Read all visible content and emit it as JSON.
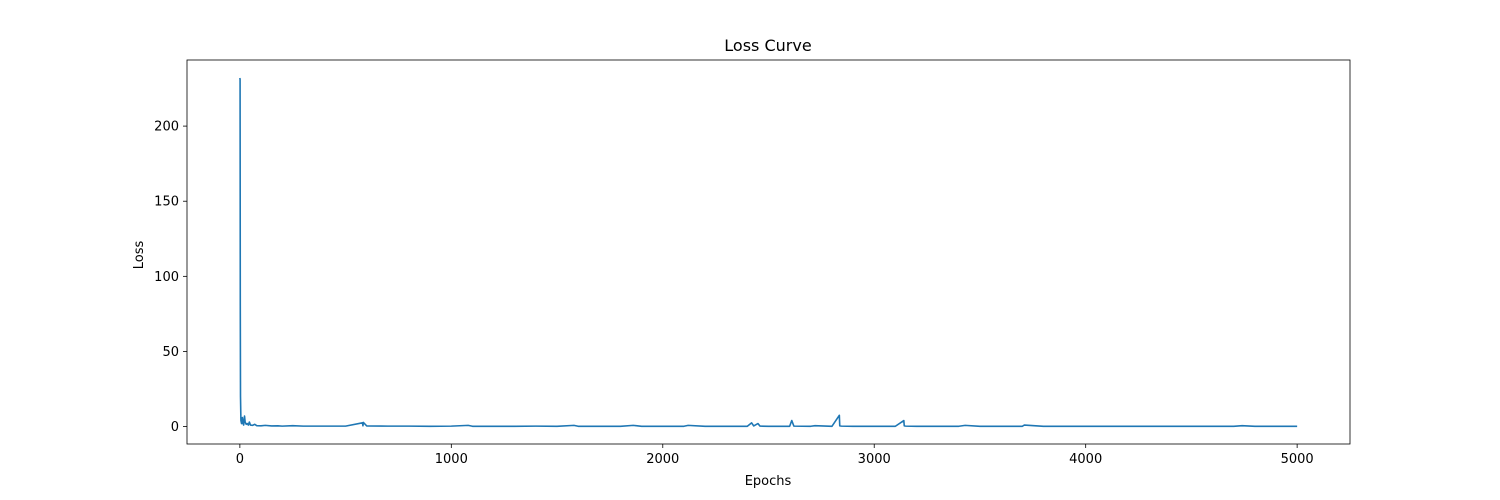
{
  "chart_data": {
    "type": "line",
    "title": "Loss Curve",
    "xlabel": "Epochs",
    "ylabel": "Loss",
    "xlim": [
      -250,
      5250
    ],
    "ylim": [
      -11.6,
      244
    ],
    "x_ticks": [
      0,
      1000,
      2000,
      3000,
      4000,
      5000
    ],
    "y_ticks": [
      0,
      50,
      100,
      150,
      200
    ],
    "grid": false,
    "legend": "none",
    "series": [
      {
        "color": "#1f77b4",
        "x": [
          0,
          1,
          2,
          3,
          5,
          8,
          12,
          15,
          18,
          22,
          25,
          30,
          35,
          40,
          45,
          50,
          60,
          70,
          80,
          100,
          120,
          150,
          180,
          200,
          250,
          300,
          400,
          500,
          580,
          582,
          584,
          600,
          700,
          800,
          900,
          1000,
          1080,
          1100,
          1200,
          1300,
          1400,
          1500,
          1580,
          1600,
          1700,
          1800,
          1860,
          1900,
          2000,
          2100,
          2120,
          2200,
          2300,
          2400,
          2420,
          2430,
          2450,
          2460,
          2500,
          2600,
          2610,
          2620,
          2700,
          2720,
          2800,
          2835,
          2837,
          2845,
          2900,
          3000,
          3100,
          3140,
          3142,
          3150,
          3200,
          3300,
          3400,
          3430,
          3500,
          3600,
          3700,
          3710,
          3800,
          3900,
          4000,
          4100,
          4200,
          4300,
          4400,
          4500,
          4600,
          4700,
          4740,
          4800,
          4900,
          5000
        ],
        "y": [
          232,
          231,
          80,
          20,
          4,
          2,
          6,
          2,
          1,
          7,
          3,
          1.5,
          2,
          1,
          3,
          1,
          0.8,
          1.5,
          0.6,
          0.5,
          0.8,
          0.4,
          0.5,
          0.3,
          0.6,
          0.3,
          0.3,
          0.3,
          2.5,
          0.5,
          2.8,
          0.4,
          0.3,
          0.3,
          0.2,
          0.3,
          0.8,
          0.2,
          0.2,
          0.2,
          0.3,
          0.2,
          0.8,
          0.2,
          0.2,
          0.2,
          0.8,
          0.2,
          0.2,
          0.2,
          0.8,
          0.2,
          0.2,
          0.2,
          2.5,
          0.4,
          2.0,
          0.3,
          0.2,
          0.2,
          4.0,
          0.3,
          0.2,
          0.6,
          0.2,
          7.5,
          0.5,
          0.3,
          0.2,
          0.2,
          0.2,
          4.0,
          0.5,
          0.3,
          0.2,
          0.2,
          0.2,
          0.8,
          0.2,
          0.2,
          0.2,
          1.0,
          0.2,
          0.2,
          0.2,
          0.2,
          0.2,
          0.2,
          0.2,
          0.2,
          0.2,
          0.2,
          0.6,
          0.2,
          0.2,
          0.2
        ]
      }
    ]
  }
}
